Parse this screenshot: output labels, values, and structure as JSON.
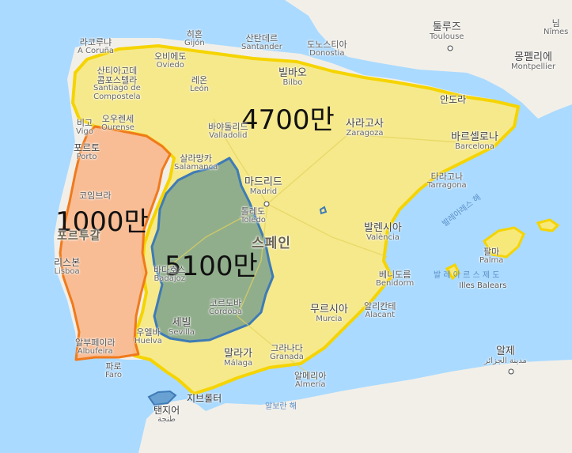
{
  "map": {
    "colors": {
      "sea": "#aadaff",
      "land": "#f2efe9",
      "spain_fill": "#f7e87a",
      "spain_stroke": "#f5d400",
      "portugal_fill": "#f8b78c",
      "portugal_stroke": "#f07a1c",
      "overlay_fill": "#6f9a8c",
      "overlay_stroke": "#3e7bb6"
    },
    "overlay_labels": {
      "spain_area": "4700만",
      "portugal_area": "1000만",
      "overlay_area": "5100만"
    },
    "countries": {
      "spain": "스페인",
      "portugal": "포르투갈"
    },
    "cities": {
      "la_coruna": {
        "ko": "라코루냐",
        "local": "A Coruña"
      },
      "gijon": {
        "ko": "히혼",
        "local": "Gijón"
      },
      "santander": {
        "ko": "산탄데르",
        "local": "Santander"
      },
      "donostia": {
        "ko": "도노스티아",
        "local": "Donostia"
      },
      "toulouse": {
        "ko": "툴루즈",
        "local": "Toulouse"
      },
      "nimes": {
        "ko": "님",
        "local": "Nîmes"
      },
      "oviedo": {
        "ko": "오비에도",
        "local": "Oviedo"
      },
      "santiago": {
        "ko": "산티아고데\n콤포스텔라",
        "local": "Santiago de\nCompostela"
      },
      "bilbao": {
        "ko": "빌바오",
        "local": "Bilbo"
      },
      "montpellier": {
        "ko": "몽펠리에",
        "local": "Montpellier"
      },
      "leon": {
        "ko": "레온",
        "local": "León"
      },
      "andorra": {
        "ko": "안도라",
        "local": ""
      },
      "vigo": {
        "ko": "비고",
        "local": "Vigo"
      },
      "ourense": {
        "ko": "오우렌세",
        "local": "Ourense"
      },
      "valladolid": {
        "ko": "바야돌리드",
        "local": "Valladolid"
      },
      "zaragoza": {
        "ko": "사라고사",
        "local": "Zaragoza"
      },
      "barcelona": {
        "ko": "바르셀로나",
        "local": "Barcelona"
      },
      "porto": {
        "ko": "포르토",
        "local": "Porto"
      },
      "salamanca": {
        "ko": "살라망카",
        "local": "Salamanca"
      },
      "tarragona": {
        "ko": "타라고나",
        "local": "Tarragona"
      },
      "coimbra": {
        "ko": "코임브라",
        "local": "Coimbra"
      },
      "madrid": {
        "ko": "마드리드",
        "local": "Madrid"
      },
      "toledo": {
        "ko": "톨레도",
        "local": "Toledo"
      },
      "valencia": {
        "ko": "발렌시아",
        "local": "València"
      },
      "palma": {
        "ko": "팔마",
        "local": "Palma"
      },
      "lisboa": {
        "ko": "리스본",
        "local": "Lisboa"
      },
      "badajoz": {
        "ko": "바다호스",
        "local": "Badajoz"
      },
      "benidorm": {
        "ko": "베니도름",
        "local": "Benidorm"
      },
      "cordoba": {
        "ko": "코르도바",
        "local": "Córdoba"
      },
      "murcia": {
        "ko": "무르시아",
        "local": "Murcia"
      },
      "alicante": {
        "ko": "알리칸테",
        "local": "Alacant"
      },
      "sevilla": {
        "ko": "세빌",
        "local": "Sevilla"
      },
      "huelva": {
        "ko": "우엘바",
        "local": "Huelva"
      },
      "albufeira": {
        "ko": "알부페이라",
        "local": "Albufeira"
      },
      "granada": {
        "ko": "그라나다",
        "local": "Granada"
      },
      "malaga": {
        "ko": "말라가",
        "local": "Málaga"
      },
      "almeria": {
        "ko": "알메리아",
        "local": "Almería"
      },
      "faro": {
        "ko": "파로",
        "local": "Faro"
      },
      "argel": {
        "ko": "알제",
        "local": "مدينة الجزائر"
      },
      "gibraltar": {
        "ko": "지브롤터",
        "local": ""
      },
      "tangier": {
        "ko": "탠지어",
        "local": "طنجة"
      }
    },
    "water": {
      "balearic_sea": "발레아레스 해",
      "balearic_islands": "발 레 아 르 스  제 도",
      "illes_balears": "Illes Balears",
      "alboran": "알보란 해"
    }
  }
}
